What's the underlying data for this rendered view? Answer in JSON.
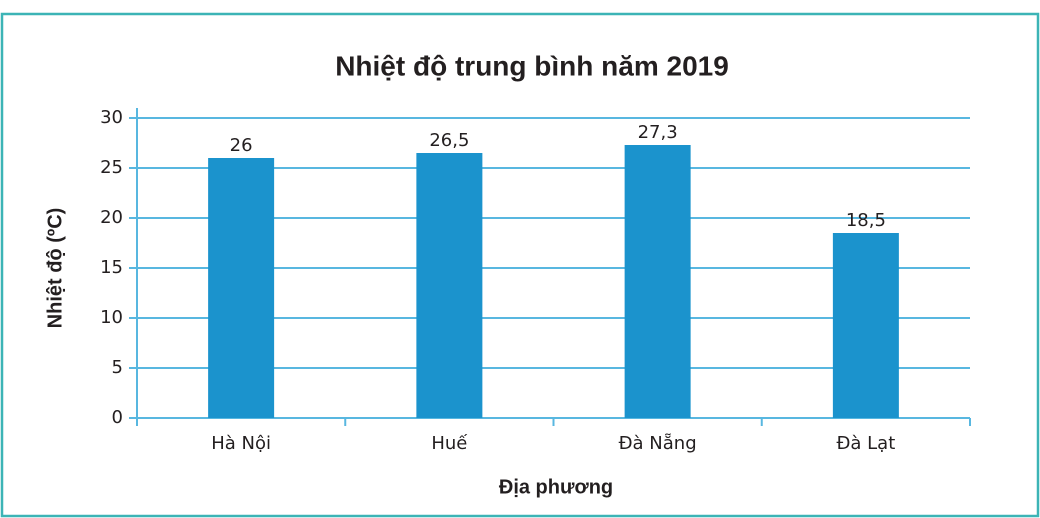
{
  "chart_data": {
    "type": "bar",
    "title": "Nhiệt độ trung bình năm 2019",
    "x_label": "Địa phương",
    "y_label": "Nhiệt độ (ºC)",
    "categories": [
      "Hà Nội",
      "Huế",
      "Đà Nẵng",
      "Đà Lạt"
    ],
    "values": [
      26,
      26.5,
      27.3,
      18.5
    ],
    "value_labels": [
      "26",
      "26,5",
      "27,3",
      "18,5"
    ],
    "color": "#1b93cd",
    "ylim": [
      0,
      30
    ],
    "yticks": [
      0,
      5,
      10,
      15,
      20,
      25,
      30
    ],
    "grid": true
  }
}
